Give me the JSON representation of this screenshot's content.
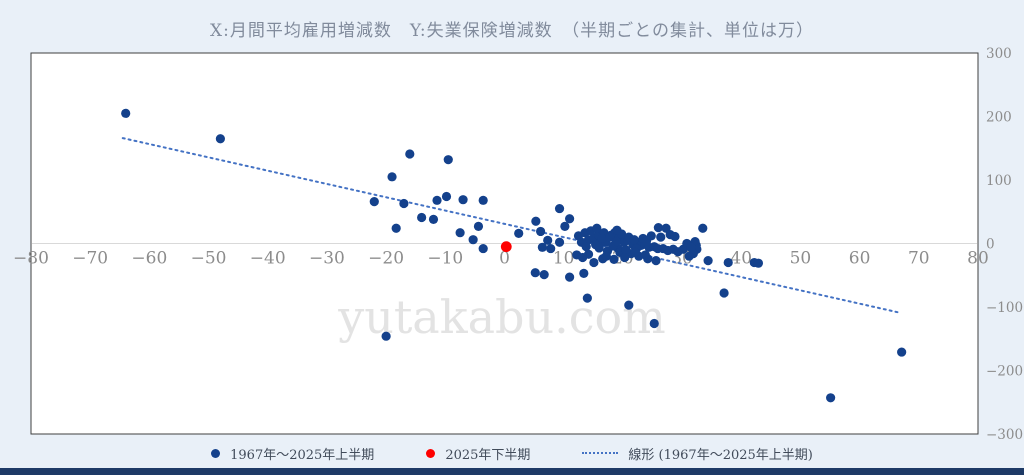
{
  "watermark": "yutakabu.com",
  "colors": {
    "page_background": "#e9f0f8",
    "plot_background": "#ffffff",
    "plot_border": "#3f3f3f",
    "zero_gridline": "#d9d9d9",
    "tick_label": "#8c8c8c",
    "title_text": "#818b9c",
    "legend_text": "#414b5a",
    "series_main": "#14418c",
    "series_highlight": "#fe0000",
    "trendline": "#4472c4",
    "bottom_bar": "#1e3a66",
    "watermark_text": "#e3e3e3"
  },
  "chart_data": {
    "type": "scatter",
    "title": "X:月間平均雇用増減数　Y:失業保険増減数　（半期ごとの集計、単位は万）",
    "xlabel": "月間平均雇用増減数",
    "ylabel": "失業保険増減数",
    "xlim": [
      -80,
      80
    ],
    "ylim": [
      -300,
      300
    ],
    "x_ticks": [
      -80,
      -70,
      -60,
      -50,
      -40,
      -30,
      -20,
      -10,
      0,
      10,
      20,
      30,
      40,
      50,
      60,
      70,
      80
    ],
    "y_ticks": [
      300,
      200,
      100,
      0,
      -100,
      -200,
      -300
    ],
    "grid": "horizontal zero line only",
    "y_axis_side": "right",
    "legend_position": "bottom",
    "series": [
      {
        "name": "1967年～2025年上半期",
        "marker": "circle",
        "color": "#14418c",
        "points": [
          [
            -64,
            205
          ],
          [
            -48,
            165
          ],
          [
            -22,
            66
          ],
          [
            -19,
            105
          ],
          [
            -18.3,
            24
          ],
          [
            -17,
            63
          ],
          [
            -16,
            141
          ],
          [
            -14,
            41
          ],
          [
            -12,
            38
          ],
          [
            -11.4,
            68
          ],
          [
            -9.8,
            74
          ],
          [
            -9.5,
            132
          ],
          [
            -7.5,
            17
          ],
          [
            -7,
            69
          ],
          [
            -5.3,
            6
          ],
          [
            -4.4,
            27
          ],
          [
            -3.6,
            68
          ],
          [
            -3.6,
            -8
          ],
          [
            -20,
            -146
          ],
          [
            2.4,
            16
          ],
          [
            5.3,
            35
          ],
          [
            6.1,
            19
          ],
          [
            7.3,
            5
          ],
          [
            9.3,
            55
          ],
          [
            9.3,
            2
          ],
          [
            6.4,
            -6
          ],
          [
            7.8,
            -8
          ],
          [
            11,
            39
          ],
          [
            10.2,
            27
          ],
          [
            5.2,
            -46
          ],
          [
            6.7,
            -49
          ],
          [
            11,
            -53
          ],
          [
            13.4,
            -47
          ],
          [
            14,
            -86
          ],
          [
            21,
            -97
          ],
          [
            25.3,
            -126
          ],
          [
            13.6,
            17
          ],
          [
            14.2,
            6
          ],
          [
            15.1,
            9
          ],
          [
            15.9,
            13
          ],
          [
            16.8,
            17
          ],
          [
            16.3,
            3
          ],
          [
            17.1,
            2
          ],
          [
            18,
            13
          ],
          [
            18.6,
            17
          ],
          [
            19.3,
            8
          ],
          [
            14.2,
            -17
          ],
          [
            15.1,
            -30
          ],
          [
            16.6,
            -24
          ],
          [
            19.2,
            -8
          ],
          [
            19.5,
            -14
          ],
          [
            26,
            25
          ],
          [
            27.3,
            24
          ],
          [
            28,
            14
          ],
          [
            28.8,
            11
          ],
          [
            20.2,
            2
          ],
          [
            20.8,
            5
          ],
          [
            21.7,
            -2
          ],
          [
            22.4,
            2
          ],
          [
            23.1,
            -3
          ],
          [
            23.7,
            0
          ],
          [
            24.4,
            -6
          ],
          [
            25.3,
            -5
          ],
          [
            25.9,
            -8
          ],
          [
            26.8,
            -8
          ],
          [
            27.6,
            -11
          ],
          [
            28.5,
            -9
          ],
          [
            29.3,
            -13
          ],
          [
            30.2,
            -9
          ],
          [
            21.4,
            -16
          ],
          [
            22.7,
            -20
          ],
          [
            24.2,
            -24
          ],
          [
            25.6,
            -27
          ],
          [
            33.5,
            24
          ],
          [
            32.2,
            3
          ],
          [
            32.4,
            -3
          ],
          [
            32.5,
            -9
          ],
          [
            31.9,
            -16
          ],
          [
            31.2,
            -20
          ],
          [
            34.4,
            -27
          ],
          [
            37.8,
            -30
          ],
          [
            42.2,
            -30
          ],
          [
            42.9,
            -31
          ],
          [
            37.1,
            -78
          ],
          [
            55.1,
            -243
          ],
          [
            67.1,
            -171
          ],
          [
            12.5,
            12
          ],
          [
            13,
            2
          ],
          [
            13.8,
            -5
          ],
          [
            14.6,
            20
          ],
          [
            15.4,
            -2
          ],
          [
            16,
            -7
          ],
          [
            16.5,
            8
          ],
          [
            17.4,
            -12
          ],
          [
            17.8,
            10
          ],
          [
            18.3,
            -4
          ],
          [
            18.9,
            3
          ],
          [
            19.8,
            15
          ],
          [
            20.5,
            -10
          ],
          [
            21,
            10
          ],
          [
            21.9,
            6
          ],
          [
            22.3,
            -8
          ],
          [
            23.4,
            8
          ],
          [
            24,
            4
          ],
          [
            24.8,
            12
          ],
          [
            12.2,
            -18
          ],
          [
            13.2,
            -22
          ],
          [
            17.2,
            -20
          ],
          [
            18.5,
            -25
          ],
          [
            20.3,
            -22
          ],
          [
            22.1,
            -14
          ],
          [
            23.8,
            -18
          ],
          [
            15.6,
            24
          ],
          [
            19,
            21
          ],
          [
            26.4,
            10
          ],
          [
            30.8,
            0
          ],
          [
            31.5,
            -6
          ]
        ]
      },
      {
        "name": "2025年下半期",
        "marker": "circle",
        "color": "#fe0000",
        "points": [
          [
            0.3,
            -5
          ]
        ]
      },
      {
        "name": "線形 (1967年～2025年上半期)",
        "marker": "dotted-line",
        "color": "#4472c4",
        "points": [
          [
            -64.5,
            166
          ],
          [
            66.8,
            -109
          ]
        ]
      }
    ]
  }
}
